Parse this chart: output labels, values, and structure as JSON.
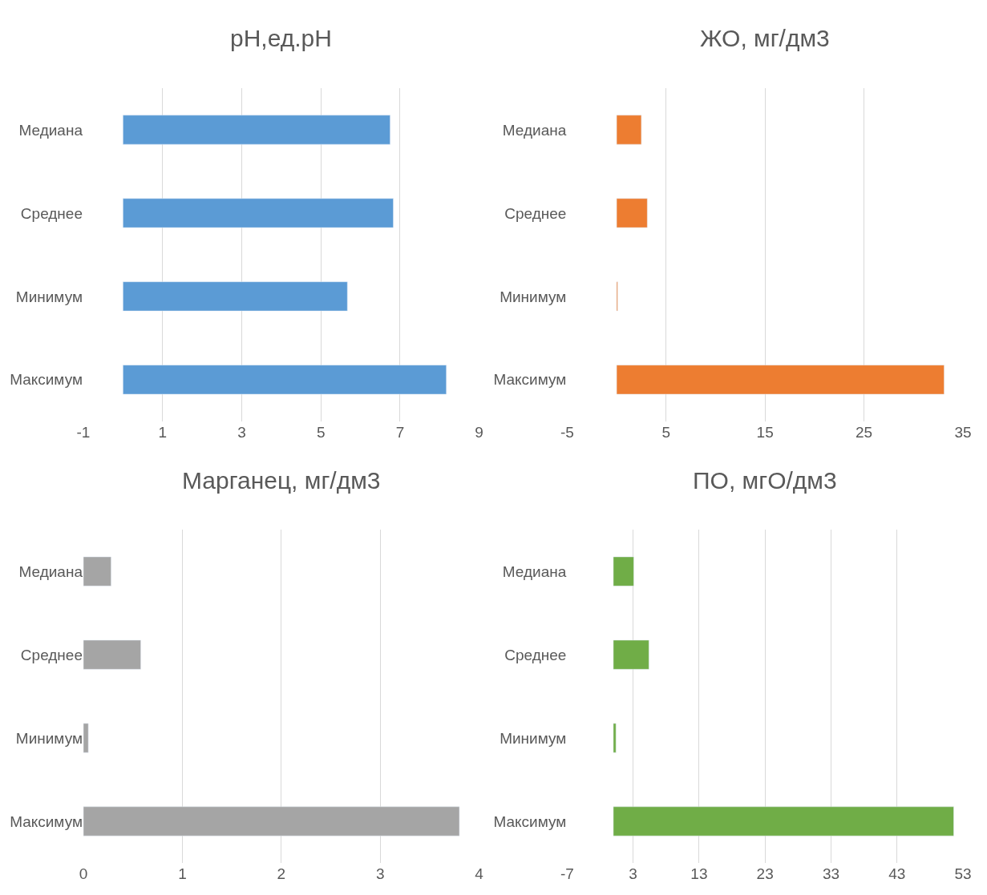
{
  "chart_data": [
    {
      "type": "bar",
      "orientation": "horizontal",
      "title": "pH,ед.pH",
      "categories": [
        "Медиана",
        "Среднее",
        "Минимум",
        "Максимум"
      ],
      "values": [
        6.75,
        6.83,
        5.67,
        8.17
      ],
      "color": "#5b9bd5",
      "xlim": [
        -1,
        9
      ],
      "xticks": [
        -1,
        1,
        3,
        5,
        7,
        9
      ],
      "grid": "x"
    },
    {
      "type": "bar",
      "orientation": "horizontal",
      "title": "ЖО, мг/дм3",
      "categories": [
        "Медиана",
        "Среднее",
        "Минимум",
        "Максимум"
      ],
      "values": [
        2.5,
        3.1,
        0.1,
        33.1
      ],
      "color": "#ed7d31",
      "xlim": [
        -5,
        35
      ],
      "xticks": [
        -5,
        5,
        15,
        25,
        35
      ],
      "grid": "x"
    },
    {
      "type": "bar",
      "orientation": "horizontal",
      "title": "Марганец, мг/дм3",
      "categories": [
        "Медиана",
        "Среднее",
        "Минимум",
        "Максимум"
      ],
      "values": [
        0.28,
        0.58,
        0.05,
        3.8
      ],
      "color": "#a5a5a5",
      "xlim": [
        0,
        4
      ],
      "xticks": [
        0,
        1,
        2,
        3,
        4
      ],
      "grid": "x"
    },
    {
      "type": "bar",
      "orientation": "horizontal",
      "title": "ПО, мгО/дм3",
      "categories": [
        "Медиана",
        "Среднее",
        "Минимум",
        "Максимум"
      ],
      "values": [
        3.1,
        5.4,
        0.4,
        51.6
      ],
      "color": "#70ad47",
      "xlim": [
        -7,
        53
      ],
      "xticks": [
        -7,
        3,
        13,
        23,
        33,
        43,
        53
      ],
      "grid": "x"
    }
  ]
}
